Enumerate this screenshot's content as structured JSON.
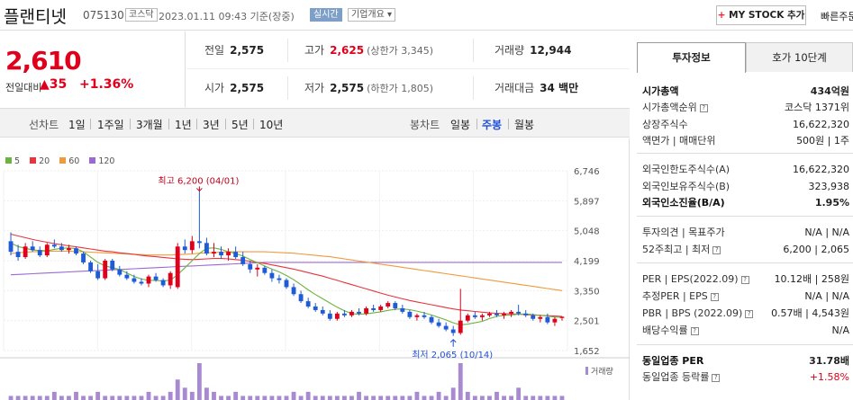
{
  "header": {
    "name": "플랜티넷",
    "code": "075130",
    "market": "코스닥",
    "datetime": "2023.01.11 09:43 기준(장중)",
    "realtime": "실시간",
    "company_info": "기업개요",
    "mystock_label": "MY STOCK 추가",
    "quick_order": "빠른주문"
  },
  "price": {
    "current": "2,610",
    "change_label": "전일대비",
    "change": "35",
    "change_pct": "+1.36%"
  },
  "quote": {
    "prev_close_label": "전일",
    "prev_close": "2,575",
    "high_label": "고가",
    "high": "2,625",
    "upper_limit": "(상한가 3,345)",
    "volume_label": "거래량",
    "volume": "12,944",
    "open_label": "시가",
    "open": "2,575",
    "low_label": "저가",
    "low": "2,575",
    "lower_limit": "(하한가 1,805)",
    "amount_label": "거래대금",
    "amount": "34 백만"
  },
  "period": {
    "line_chart_label": "선차트",
    "line_periods": [
      "1일",
      "1주일",
      "3개월",
      "1년",
      "3년",
      "5년",
      "10년"
    ],
    "candle_chart_label": "봉차트",
    "candle_periods": [
      "일봉",
      "주봉",
      "월봉"
    ],
    "candle_active": "주봉"
  },
  "colors": {
    "up": "#e0001b",
    "down": "#1f5bd6",
    "ma5": "#6cb33f",
    "ma20": "#e8343a",
    "ma60": "#f09a3e",
    "ma120": "#9a6ad2",
    "volume": "#a88ad0",
    "accent_blue": "#1e4fd8"
  },
  "chart_data": {
    "type": "candlestick",
    "legend": [
      "5",
      "20",
      "60",
      "120"
    ],
    "ylim": [
      1652,
      6746
    ],
    "yticks": [
      "6,746",
      "5,897",
      "5,048",
      "4,199",
      "3,350",
      "2,501",
      "1,652"
    ],
    "annotations": {
      "high": "최고 6,200 (04/01)",
      "low": "최저 2,065 (10/14)"
    },
    "volume_label": "거래량",
    "candles": [
      [
        4750,
        5000,
        4350,
        4450
      ],
      [
        4450,
        4650,
        4200,
        4300
      ],
      [
        4300,
        4700,
        4250,
        4600
      ],
      [
        4600,
        4750,
        4450,
        4500
      ],
      [
        4500,
        4600,
        4300,
        4350
      ],
      [
        4350,
        4700,
        4300,
        4650
      ],
      [
        4650,
        4800,
        4550,
        4600
      ],
      [
        4600,
        4700,
        4450,
        4500
      ],
      [
        4500,
        4650,
        4400,
        4550
      ],
      [
        4550,
        4600,
        4350,
        4400
      ],
      [
        4400,
        4450,
        4100,
        4150
      ],
      [
        4150,
        4200,
        3850,
        3900
      ],
      [
        3900,
        4100,
        3650,
        3700
      ],
      [
        3700,
        4250,
        3650,
        4200
      ],
      [
        4200,
        4250,
        3900,
        3950
      ],
      [
        3950,
        4050,
        3750,
        3800
      ],
      [
        3800,
        3900,
        3650,
        3700
      ],
      [
        3700,
        3800,
        3550,
        3600
      ],
      [
        3600,
        3700,
        3500,
        3550
      ],
      [
        3550,
        3800,
        3450,
        3750
      ],
      [
        3750,
        3850,
        3600,
        3650
      ],
      [
        3650,
        3700,
        3450,
        3500
      ],
      [
        3500,
        3900,
        3400,
        3850
      ],
      [
        3450,
        4700,
        3400,
        4600
      ],
      [
        4600,
        4800,
        4400,
        4500
      ],
      [
        4500,
        4900,
        4400,
        4750
      ],
      [
        4750,
        6200,
        4550,
        4700
      ],
      [
        4700,
        4850,
        4350,
        4400
      ],
      [
        4400,
        4700,
        4300,
        4450
      ],
      [
        4450,
        4600,
        4250,
        4350
      ],
      [
        4350,
        4550,
        4200,
        4450
      ],
      [
        4450,
        4600,
        4250,
        4300
      ],
      [
        4300,
        4450,
        4050,
        4100
      ],
      [
        4100,
        4200,
        3850,
        3950
      ],
      [
        3950,
        4100,
        3750,
        4000
      ],
      [
        4000,
        4050,
        3800,
        3850
      ],
      [
        3850,
        3950,
        3600,
        3700
      ],
      [
        3700,
        3800,
        3550,
        3650
      ],
      [
        3650,
        3700,
        3400,
        3450
      ],
      [
        3450,
        3550,
        3200,
        3250
      ],
      [
        3250,
        3350,
        3000,
        3050
      ],
      [
        3050,
        3150,
        2850,
        2900
      ],
      [
        2900,
        3000,
        2750,
        2800
      ],
      [
        2800,
        2900,
        2650,
        2700
      ],
      [
        2700,
        2800,
        2500,
        2550
      ],
      [
        2550,
        2750,
        2500,
        2700
      ],
      [
        2700,
        2800,
        2600,
        2650
      ],
      [
        2650,
        2800,
        2600,
        2750
      ],
      [
        2750,
        2850,
        2650,
        2700
      ],
      [
        2700,
        2900,
        2650,
        2850
      ],
      [
        2850,
        2950,
        2750,
        2800
      ],
      [
        2800,
        2950,
        2750,
        2900
      ],
      [
        2900,
        3050,
        2850,
        3000
      ],
      [
        3000,
        3050,
        2800,
        2850
      ],
      [
        2850,
        2950,
        2700,
        2750
      ],
      [
        2750,
        2800,
        2550,
        2600
      ],
      [
        2600,
        2700,
        2500,
        2650
      ],
      [
        2650,
        2750,
        2550,
        2600
      ],
      [
        2600,
        2650,
        2400,
        2450
      ],
      [
        2450,
        2550,
        2300,
        2350
      ],
      [
        2350,
        2450,
        2200,
        2250
      ],
      [
        2250,
        2350,
        2065,
        2150
      ],
      [
        2150,
        3400,
        2100,
        2500
      ],
      [
        2500,
        2700,
        2450,
        2650
      ],
      [
        2650,
        2750,
        2550,
        2600
      ],
      [
        2600,
        2700,
        2500,
        2650
      ],
      [
        2650,
        2750,
        2600,
        2700
      ],
      [
        2700,
        2800,
        2600,
        2650
      ],
      [
        2650,
        2750,
        2550,
        2700
      ],
      [
        2700,
        2800,
        2600,
        2750
      ],
      [
        2750,
        2950,
        2650,
        2700
      ],
      [
        2700,
        2800,
        2600,
        2650
      ],
      [
        2650,
        2700,
        2500,
        2550
      ],
      [
        2550,
        2650,
        2450,
        2600
      ],
      [
        2600,
        2700,
        2400,
        2450
      ],
      [
        2450,
        2600,
        2350,
        2550
      ],
      [
        2575,
        2625,
        2500,
        2610
      ]
    ],
    "volume": [
      1,
      1,
      1,
      1,
      1,
      1,
      2,
      1,
      1,
      2,
      1,
      1,
      2,
      1,
      1,
      1,
      1,
      1,
      1,
      2,
      1,
      1,
      2,
      5,
      3,
      2,
      9,
      3,
      2,
      1,
      1,
      2,
      1,
      1,
      1,
      1,
      1,
      1,
      1,
      2,
      1,
      2,
      1,
      1,
      1,
      1,
      1,
      1,
      2,
      1,
      1,
      1,
      1,
      1,
      1,
      1,
      2,
      1,
      1,
      2,
      1,
      3,
      9,
      2,
      1,
      1,
      1,
      2,
      1,
      1,
      3,
      1,
      1,
      1,
      1,
      1,
      1
    ],
    "ma": {
      "5": [
        4700,
        4600,
        4550,
        4500,
        4490,
        4480,
        4520,
        4550,
        4560,
        4540,
        4450,
        4300,
        4150,
        4050,
        4000,
        3950,
        3850,
        3750,
        3680,
        3640,
        3640,
        3620,
        3650,
        3800,
        4000,
        4200,
        4400,
        4550,
        4560,
        4520,
        4450,
        4400,
        4330,
        4230,
        4140,
        4050,
        3960,
        3880,
        3780,
        3660,
        3520,
        3370,
        3240,
        3120,
        3000,
        2880,
        2780,
        2700,
        2680,
        2690,
        2720,
        2750,
        2790,
        2820,
        2830,
        2810,
        2770,
        2720,
        2660,
        2590,
        2520,
        2440,
        2380,
        2400,
        2440,
        2480,
        2560,
        2620,
        2650,
        2660,
        2680,
        2690,
        2670,
        2650,
        2630,
        2600,
        2600
      ],
      "20": [
        4950,
        4900,
        4850,
        4800,
        4760,
        4720,
        4680,
        4650,
        4620,
        4590,
        4560,
        4530,
        4500,
        4470,
        4450,
        4420,
        4400,
        4380,
        4350,
        4330,
        4310,
        4290,
        4270,
        4250,
        4240,
        4230,
        4240,
        4250,
        4260,
        4260,
        4250,
        4230,
        4210,
        4180,
        4150,
        4120,
        4080,
        4040,
        4000,
        3960,
        3910,
        3860,
        3810,
        3760,
        3700,
        3640,
        3580,
        3520,
        3460,
        3400,
        3340,
        3280,
        3220,
        3170,
        3120,
        3070,
        3030,
        2990,
        2950,
        2910,
        2870,
        2830,
        2800,
        2780,
        2760,
        2740,
        2720,
        2710,
        2700,
        2690,
        2680,
        2670,
        2660,
        2650,
        2640,
        2630,
        2620
      ],
      "60": [
        4400,
        4420,
        4440,
        4450,
        4460,
        4470,
        4470,
        4470,
        4470,
        4460,
        4450,
        4440,
        4430,
        4420,
        4410,
        4400,
        4390,
        4380,
        4370,
        4360,
        4360,
        4360,
        4360,
        4370,
        4380,
        4390,
        4410,
        4420,
        4430,
        4440,
        4450,
        4450,
        4450,
        4450,
        4450,
        4450,
        4440,
        4430,
        4420,
        4410,
        4390,
        4370,
        4350,
        4330,
        4310,
        4280,
        4250,
        4220,
        4190,
        4160,
        4130,
        4100,
        4070,
        4040,
        4010,
        3980,
        3950,
        3920,
        3890,
        3860,
        3830,
        3800,
        3770,
        3740,
        3710,
        3680,
        3650,
        3620,
        3590,
        3560,
        3530,
        3500,
        3470,
        3440,
        3410,
        3380,
        3350
      ],
      "120": [
        3800,
        3810,
        3820,
        3830,
        3840,
        3850,
        3860,
        3870,
        3880,
        3890,
        3900,
        3910,
        3920,
        3930,
        3940,
        3950,
        3960,
        3970,
        3980,
        3990,
        4000,
        4010,
        4020,
        4030,
        4040,
        4050,
        4060,
        4070,
        4080,
        4090,
        4100,
        4110,
        4120,
        4130,
        4140,
        4150,
        4150,
        4150,
        4150,
        4150,
        4150,
        4150,
        4150,
        4150,
        4150,
        4150,
        4150,
        4150,
        4150,
        4150,
        4150,
        4150,
        4150,
        4150,
        4150,
        4150,
        4150,
        4150,
        4150,
        4150,
        4150,
        4150,
        4150,
        4150,
        4150,
        4150,
        4150,
        4150,
        4150,
        4150,
        4150,
        4150,
        4150,
        4150,
        4150,
        4150,
        4150
      ]
    }
  },
  "side": {
    "tabs": [
      "투자정보",
      "호가 10단계"
    ],
    "rows": [
      {
        "k": "시가총액",
        "v": "434억원",
        "bold": true
      },
      {
        "k": "시가총액순위",
        "v": "코스닥 1371위"
      },
      {
        "k": "상장주식수",
        "v": "16,622,320"
      },
      {
        "k": "액면가 | 매매단위",
        "v": "500원 | 1주"
      },
      {
        "k": "외국인한도주식수(A)",
        "v": "16,622,320"
      },
      {
        "k": "외국인보유주식수(B)",
        "v": "323,938"
      },
      {
        "k": "외국인소진율(B/A)",
        "v": "1.95%",
        "bold": true
      },
      {
        "k": "투자의견 | 목표주가",
        "v": "N/A | N/A"
      },
      {
        "k": "52주최고 | 최저",
        "v": "6,200 | 2,065"
      },
      {
        "k": "PER | EPS(2022.09)",
        "v": "10.12배 | 258원"
      },
      {
        "k": "추정PER | EPS",
        "v": "N/A | N/A"
      },
      {
        "k": "PBR | BPS (2022.09)",
        "v": "0.57배 | 4,543원"
      },
      {
        "k": "배당수익률",
        "v": "N/A"
      },
      {
        "k": "동일업종 PER",
        "v": "31.78배",
        "bold": true
      },
      {
        "k": "동일업종 등락률",
        "v": "+1.58%",
        "up": true
      }
    ]
  }
}
